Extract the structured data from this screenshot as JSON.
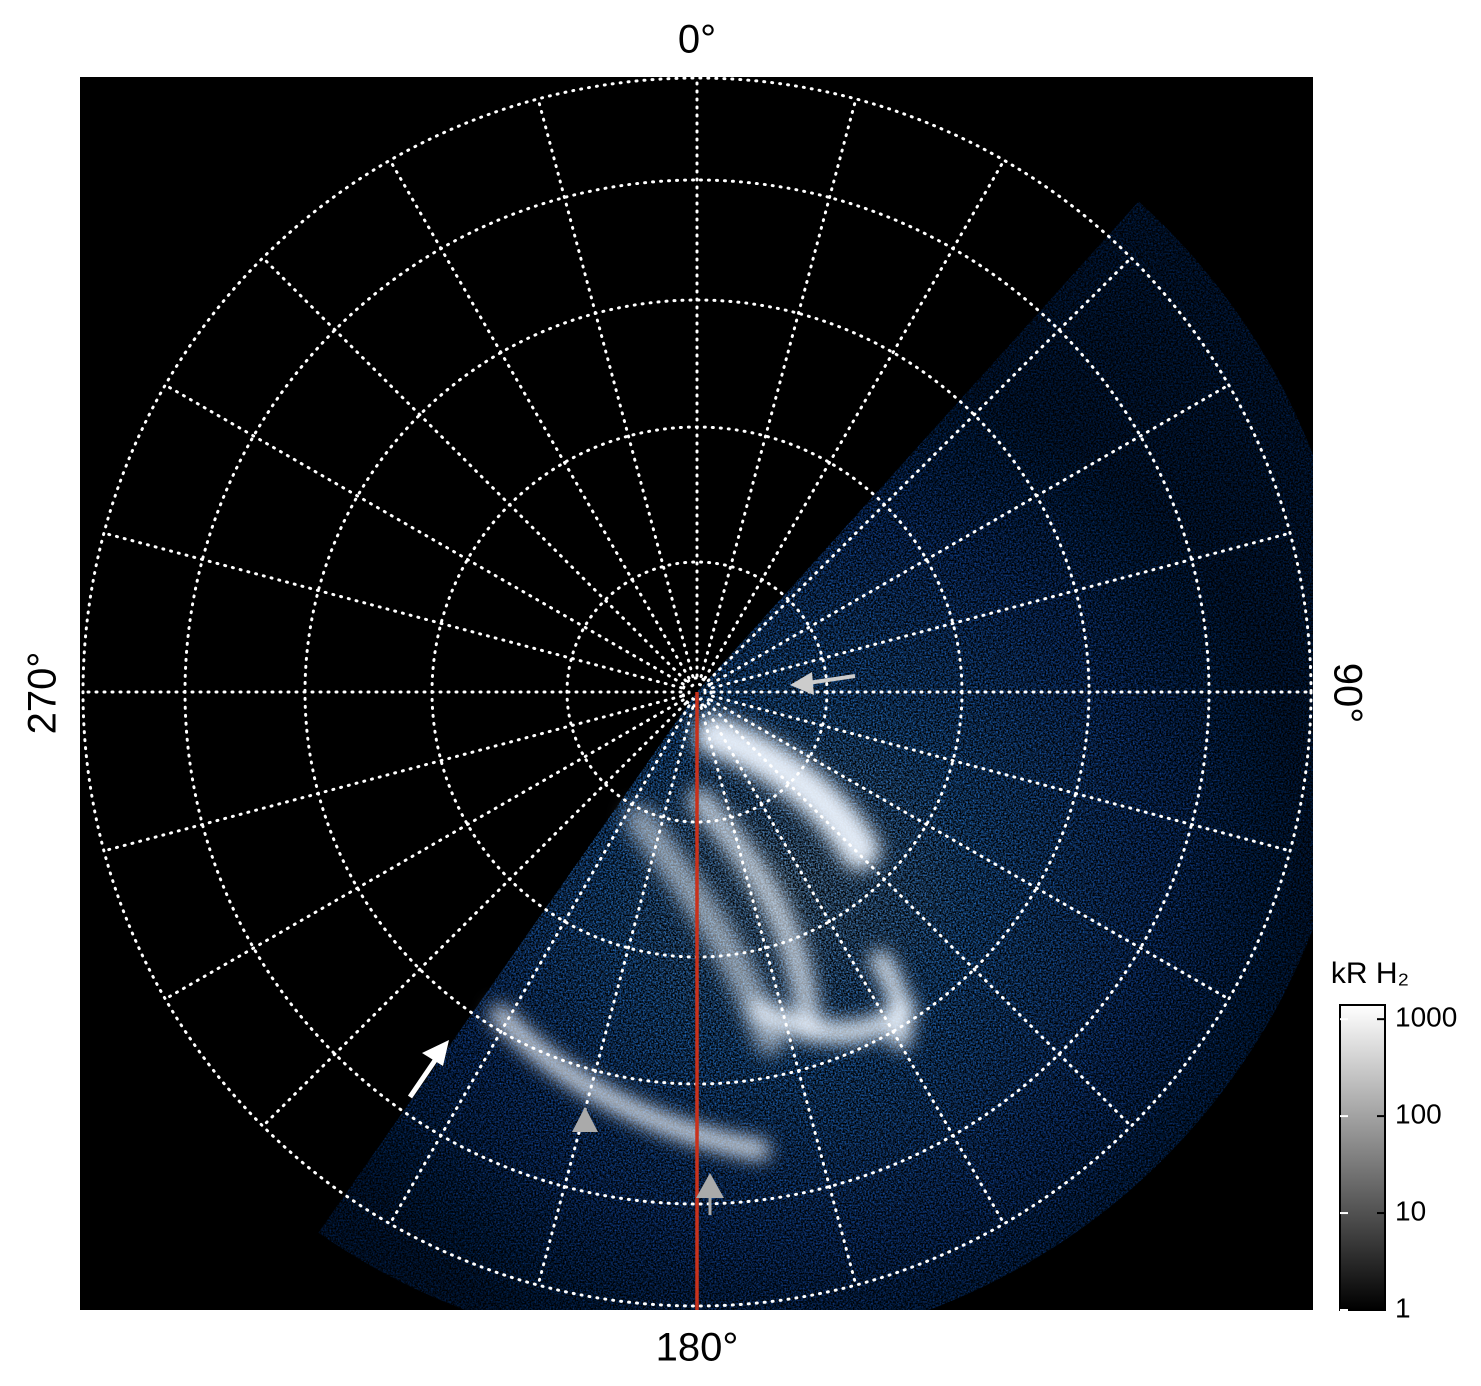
{
  "chart_data": {
    "type": "polar-map",
    "angle_labels": [
      "0°",
      "90°",
      "180°",
      "270°"
    ],
    "colorbar": {
      "label": "kR H₂",
      "scale": "log",
      "clim": [
        1,
        1400
      ],
      "ticks": [
        1,
        10,
        100,
        1000
      ],
      "colors": [
        "#000000",
        "#ffffff"
      ]
    }
  }
}
